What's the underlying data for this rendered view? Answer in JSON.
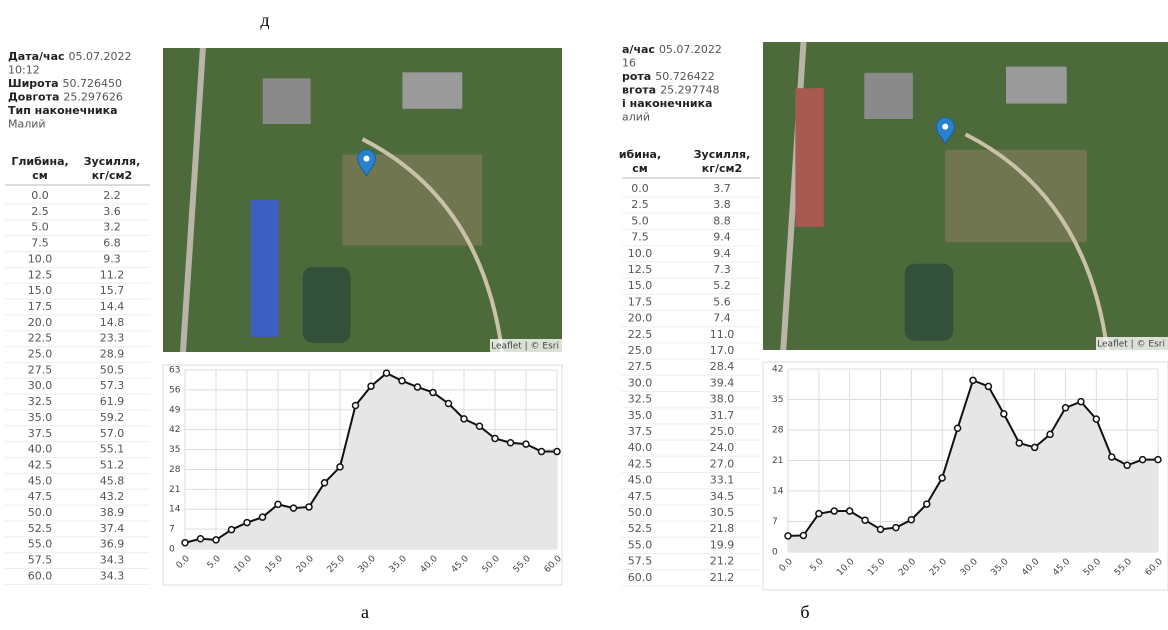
{
  "figure_labels": {
    "top": "д",
    "left": "а",
    "right": "б"
  },
  "panels": [
    {
      "info": [
        {
          "label": "Дата/час",
          "value": "05.07.2022"
        },
        {
          "value": "10:12"
        },
        {
          "label": "Широта",
          "value": "50.726450"
        },
        {
          "label": "Довгота",
          "value": "25.297626"
        },
        {
          "label": "Тип наконечника"
        },
        {
          "value": "Малий"
        }
      ],
      "table": {
        "header": [
          [
            "Глибина,",
            "см"
          ],
          [
            "Зусилля,",
            "кг/см2"
          ]
        ],
        "rows": [
          [
            "0.0",
            "2.2"
          ],
          [
            "2.5",
            "3.6"
          ],
          [
            "5.0",
            "3.2"
          ],
          [
            "7.5",
            "6.8"
          ],
          [
            "10.0",
            "9.3"
          ],
          [
            "12.5",
            "11.2"
          ],
          [
            "15.0",
            "15.7"
          ],
          [
            "17.5",
            "14.4"
          ],
          [
            "20.0",
            "14.8"
          ],
          [
            "22.5",
            "23.3"
          ],
          [
            "25.0",
            "28.9"
          ],
          [
            "27.5",
            "50.5"
          ],
          [
            "30.0",
            "57.3"
          ],
          [
            "32.5",
            "61.9"
          ],
          [
            "35.0",
            "59.2"
          ],
          [
            "37.5",
            "57.0"
          ],
          [
            "40.0",
            "55.1"
          ],
          [
            "42.5",
            "51.2"
          ],
          [
            "45.0",
            "45.8"
          ],
          [
            "47.5",
            "43.2"
          ],
          [
            "50.0",
            "38.9"
          ],
          [
            "52.5",
            "37.4"
          ],
          [
            "55.0",
            "36.9"
          ],
          [
            "57.5",
            "34.3"
          ],
          [
            "60.0",
            "34.3"
          ]
        ]
      },
      "map_attribution": "Leaflet | © Esri"
    },
    {
      "info": [
        {
          "label": "а/час",
          "value": "05.07.2022"
        },
        {
          "value": "16"
        },
        {
          "label": "рота",
          "value": "50.726422"
        },
        {
          "label": "вгота",
          "value": "25.297748"
        },
        {
          "label": "і наконечника"
        },
        {
          "value": "алий"
        }
      ],
      "table": {
        "header": [
          [
            "ибина,",
            "см"
          ],
          [
            "Зусилля,",
            "кг/см2"
          ]
        ],
        "rows": [
          [
            "0.0",
            "3.7"
          ],
          [
            "2.5",
            "3.8"
          ],
          [
            "5.0",
            "8.8"
          ],
          [
            "7.5",
            "9.4"
          ],
          [
            "10.0",
            "9.4"
          ],
          [
            "12.5",
            "7.3"
          ],
          [
            "15.0",
            "5.2"
          ],
          [
            "17.5",
            "5.6"
          ],
          [
            "20.0",
            "7.4"
          ],
          [
            "22.5",
            "11.0"
          ],
          [
            "25.0",
            "17.0"
          ],
          [
            "27.5",
            "28.4"
          ],
          [
            "30.0",
            "39.4"
          ],
          [
            "32.5",
            "38.0"
          ],
          [
            "35.0",
            "31.7"
          ],
          [
            "37.5",
            "25.0"
          ],
          [
            "40.0",
            "24.0"
          ],
          [
            "42.5",
            "27.0"
          ],
          [
            "45.0",
            "33.1"
          ],
          [
            "47.5",
            "34.5"
          ],
          [
            "50.0",
            "30.5"
          ],
          [
            "52.5",
            "21.8"
          ],
          [
            "55.0",
            "19.9"
          ],
          [
            "57.5",
            "21.2"
          ],
          [
            "60.0",
            "21.2"
          ]
        ]
      },
      "map_attribution": "Leaflet | © Esri"
    }
  ],
  "chart_data": [
    {
      "type": "area",
      "x": [
        0,
        2.5,
        5,
        7.5,
        10,
        12.5,
        15,
        17.5,
        20,
        22.5,
        25,
        27.5,
        30,
        32.5,
        35,
        37.5,
        40,
        42.5,
        45,
        47.5,
        50,
        52.5,
        55,
        57.5,
        60
      ],
      "values": [
        2.2,
        3.6,
        3.2,
        6.8,
        9.3,
        11.2,
        15.7,
        14.4,
        14.8,
        23.3,
        28.9,
        50.5,
        57.3,
        61.9,
        59.2,
        57.0,
        55.1,
        51.2,
        45.8,
        43.2,
        38.9,
        37.4,
        36.9,
        34.3,
        34.3
      ],
      "xlim": [
        0,
        60
      ],
      "ylim": [
        0,
        63
      ],
      "yticks": [
        0,
        7,
        14,
        21,
        28,
        35,
        42,
        49,
        56,
        63
      ],
      "xticks": [
        {
          "value": 0,
          "label": "0.0"
        },
        {
          "value": 5,
          "label": "5.0"
        },
        {
          "value": 10,
          "label": "10.0"
        },
        {
          "value": 15,
          "label": "15.0"
        },
        {
          "value": 20,
          "label": "20.0"
        },
        {
          "value": 25,
          "label": "25.0"
        },
        {
          "value": 30,
          "label": "30.0"
        },
        {
          "value": 35,
          "label": "35.0"
        },
        {
          "value": 40,
          "label": "40.0"
        },
        {
          "value": 45,
          "label": "45.0"
        },
        {
          "value": 50,
          "label": "50.0"
        },
        {
          "value": 55,
          "label": "55.0"
        },
        {
          "value": 60,
          "label": "60.0"
        }
      ],
      "color": "#111111",
      "fill": "#e6e6e6",
      "grid": true
    },
    {
      "type": "area",
      "x": [
        0,
        2.5,
        5,
        7.5,
        10,
        12.5,
        15,
        17.5,
        20,
        22.5,
        25,
        27.5,
        30,
        32.5,
        35,
        37.5,
        40,
        42.5,
        45,
        47.5,
        50,
        52.5,
        55,
        57.5,
        60
      ],
      "values": [
        3.7,
        3.8,
        8.8,
        9.4,
        9.4,
        7.3,
        5.2,
        5.6,
        7.4,
        11.0,
        17.0,
        28.4,
        39.4,
        38.0,
        31.7,
        25.0,
        24.0,
        27.0,
        33.1,
        34.5,
        30.5,
        21.8,
        19.9,
        21.2,
        21.2
      ],
      "xlim": [
        0,
        60
      ],
      "ylim": [
        0,
        42
      ],
      "yticks": [
        0,
        7,
        14,
        21,
        28,
        35,
        42
      ],
      "xticks": [
        {
          "value": 0,
          "label": "0.0"
        },
        {
          "value": 5,
          "label": "5.0"
        },
        {
          "value": 10,
          "label": "10.0"
        },
        {
          "value": 15,
          "label": "15.0"
        },
        {
          "value": 20,
          "label": "20.0"
        },
        {
          "value": 25,
          "label": "25.0"
        },
        {
          "value": 30,
          "label": "30.0"
        },
        {
          "value": 35,
          "label": "35.0"
        },
        {
          "value": 40,
          "label": "40.0"
        },
        {
          "value": 45,
          "label": "45.0"
        },
        {
          "value": 50,
          "label": "50.0"
        },
        {
          "value": 55,
          "label": "55.0"
        },
        {
          "value": 60,
          "label": "60.0"
        }
      ],
      "color": "#111111",
      "fill": "#e6e6e6",
      "grid": true
    }
  ]
}
